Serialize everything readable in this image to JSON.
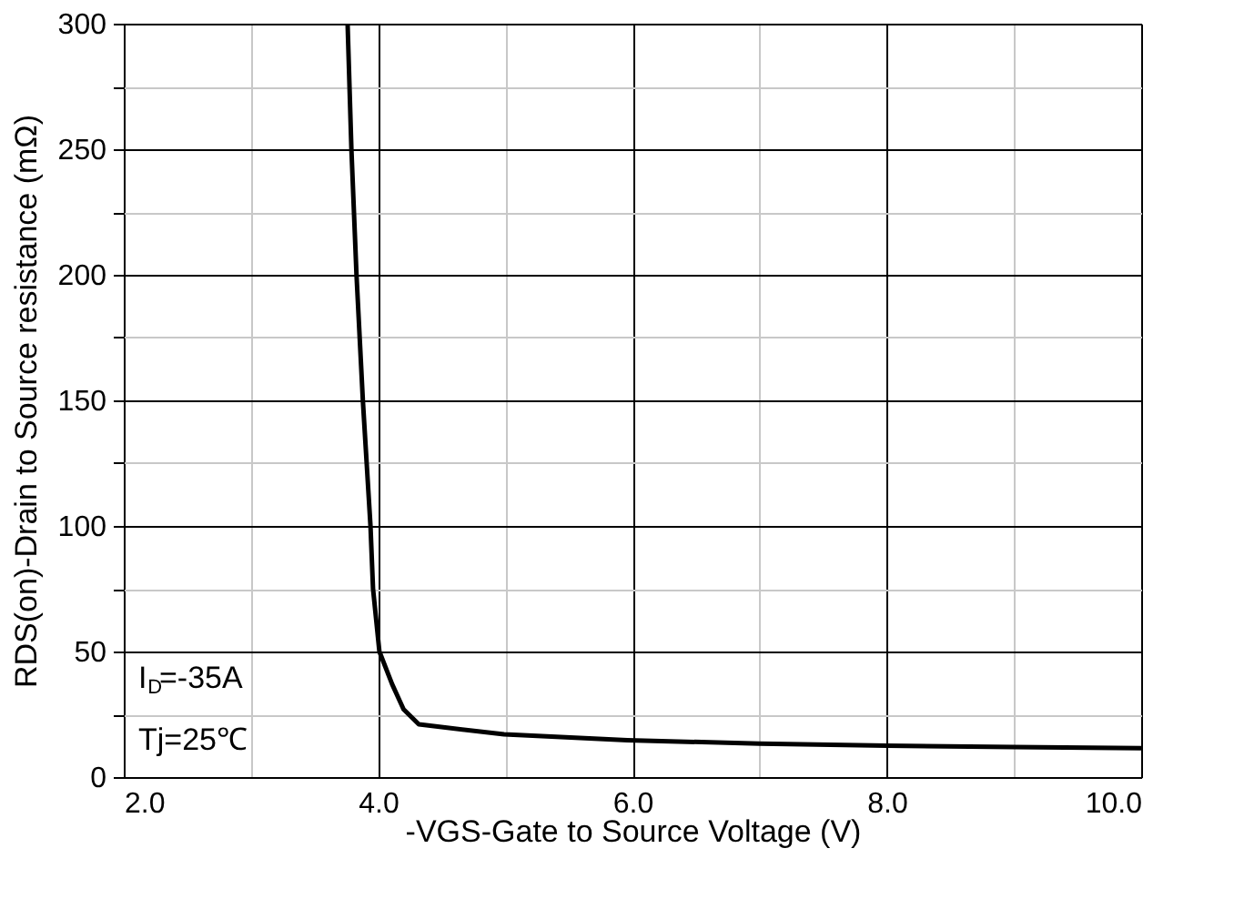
{
  "chart_data": {
    "type": "line",
    "xlabel": "-VGS-Gate to Source Voltage (V)",
    "ylabel": "RDS(on)-Drain to Source resistance (mΩ)",
    "series": [
      {
        "color": "#000000",
        "x": [
          3.76,
          3.79,
          3.83,
          3.88,
          3.94,
          3.96,
          4.01,
          4.11,
          4.2,
          4.32,
          4.99,
          5.96,
          7.0,
          8.0,
          9.0,
          10.0
        ],
        "values": [
          300,
          250,
          200,
          150,
          100,
          75,
          50,
          37,
          27,
          21,
          17,
          14.7,
          13.3,
          12.5,
          12,
          11.5
        ]
      }
    ],
    "xlim": [
      2,
      10
    ],
    "xticks": [
      {
        "value": 2,
        "label": "2.0"
      },
      {
        "value": 3,
        "label": null
      },
      {
        "value": 4,
        "label": "4.0"
      },
      {
        "value": 5,
        "label": null
      },
      {
        "value": 6,
        "label": "6.0"
      },
      {
        "value": 7,
        "label": null
      },
      {
        "value": 8,
        "label": "8.0"
      },
      {
        "value": 9,
        "label": null
      },
      {
        "value": 10,
        "label": "10.0"
      }
    ],
    "ylim": [
      0,
      300
    ],
    "yticks": [
      0,
      {
        "value": 25,
        "label": null
      },
      50,
      {
        "value": 75,
        "label": null
      },
      100,
      {
        "value": 125,
        "label": null
      },
      150,
      {
        "value": 175,
        "label": null
      },
      200,
      {
        "value": 225,
        "label": null
      },
      250,
      {
        "value": 275,
        "label": null
      },
      300
    ],
    "grid": true,
    "marker": "none",
    "line_style": "solid",
    "annotations": [
      "I$_{D}$=-35A",
      "Tj=25℃"
    ]
  }
}
